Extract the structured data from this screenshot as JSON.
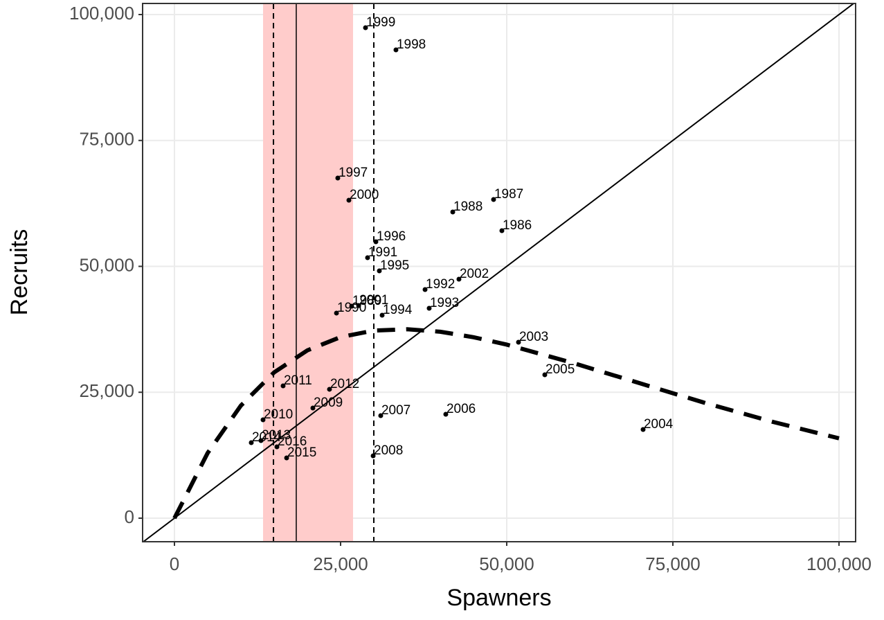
{
  "chart_data": {
    "type": "scatter",
    "x_label": "Spawners",
    "y_label": "Recruits",
    "xlim": [
      -4792,
      102500
    ],
    "ylim": [
      -4677,
      102200
    ],
    "xticks": [
      0,
      {
        "value": 25000,
        "label": "25,000"
      },
      {
        "value": 50000,
        "label": "50,000"
      },
      {
        "value": 75000,
        "label": "75,000"
      },
      {
        "value": 100000,
        "label": "100,000"
      }
    ],
    "yticks": [
      0,
      {
        "value": 25000,
        "label": "25,000"
      },
      {
        "value": 50000,
        "label": "50,000"
      },
      {
        "value": 75000,
        "label": "75,000"
      },
      {
        "value": 100000,
        "label": "100,000"
      }
    ],
    "grid": true,
    "points": {
      "color": "#000000",
      "labels": [
        "1986",
        "1987",
        "1988",
        "1989",
        "1990",
        "1991",
        "1992",
        "1993",
        "1994",
        "1995",
        "1996",
        "1997",
        "1998",
        "1999",
        "2000",
        "2001",
        "2002",
        "2003",
        "2004",
        "2005",
        "2006",
        "2007",
        "2008",
        "2009",
        "2010",
        "2011",
        "2012",
        "2013",
        "2014",
        "2015",
        "2016"
      ],
      "x": [
        49270,
        48020,
        41880,
        26670,
        24380,
        29060,
        37710,
        38330,
        31250,
        30830,
        30310,
        24580,
        33330,
        28750,
        26250,
        27710,
        42810,
        51770,
        70520,
        55730,
        40830,
        31040,
        29900,
        20830,
        13330,
        16350,
        23330,
        13020,
        11560,
        16880,
        15420
      ],
      "values": [
        57080,
        63270,
        60800,
        42090,
        40720,
        51720,
        45390,
        41680,
        40300,
        49110,
        54880,
        67540,
        92980,
        97390,
        63140,
        42230,
        47450,
        34940,
        17610,
        28470,
        20630,
        20360,
        12380,
        21870,
        19530,
        26270,
        25590,
        15410,
        14990,
        11970,
        14170
      ]
    },
    "curve": {
      "color": "#000000",
      "x": [
        0,
        5000,
        10000,
        15000,
        20000,
        25000,
        30000,
        35000,
        40000,
        45000,
        50000,
        60000,
        70000,
        80000,
        90000,
        100000
      ],
      "values": [
        0,
        12950,
        22360,
        28950,
        33320,
        35960,
        37250,
        37510,
        37020,
        35930,
        34460,
        30810,
        26800,
        22820,
        19140,
        15850
      ]
    },
    "band": {
      "xmin": 13333,
      "xmax": 26875,
      "color": "#ffcccb"
    },
    "vline": 18330,
    "dashed_vlines": [
      14900,
      30000
    ]
  }
}
